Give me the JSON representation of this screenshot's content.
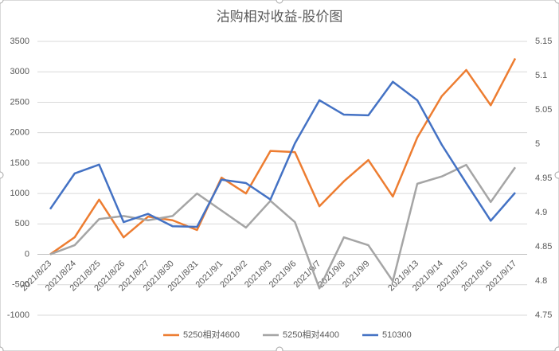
{
  "chart_data": {
    "type": "line",
    "title": "沽购相对收益-股价图",
    "categories": [
      "2021/8/23",
      "2021/8/24",
      "2021/8/25",
      "2021/8/26",
      "2021/8/27",
      "2021/8/30",
      "2021/8/31",
      "2021/9/1",
      "2021/9/2",
      "2021/9/3",
      "2021/9/6",
      "2021/9/7",
      "2021/9/8",
      "2021/9/9",
      null,
      "2021/9/13",
      "2021/9/14",
      "2021/9/15",
      "2021/9/16",
      "2021/9/17"
    ],
    "series": [
      {
        "name": "5250相对4600",
        "color": "#ed7d31",
        "values": [
          0,
          280,
          900,
          280,
          620,
          560,
          400,
          1260,
          1000,
          1700,
          1680,
          790,
          1200,
          1550,
          950,
          1920,
          2600,
          3030,
          2450,
          3220
        ]
      },
      {
        "name": "5250相对4400",
        "color": "#a5a5a5",
        "values": [
          0,
          150,
          580,
          630,
          560,
          630,
          1000,
          720,
          440,
          880,
          530,
          -560,
          280,
          150,
          -440,
          1160,
          1280,
          1470,
          860,
          1430
        ]
      },
      {
        "name": "510300",
        "color": "#4472c4",
        "axis": "y2",
        "values": [
          4.905,
          4.957,
          4.97,
          4.886,
          4.898,
          4.88,
          4.879,
          4.948,
          4.943,
          4.919,
          5.001,
          5.064,
          5.043,
          5.042,
          5.091,
          5.064,
          4.999,
          4.943,
          4.888,
          4.929
        ]
      }
    ],
    "ylim": [
      -1000,
      3500
    ],
    "yticks": [
      -1000,
      -500,
      0,
      500,
      1000,
      1500,
      2000,
      2500,
      3000,
      3500
    ],
    "y2lim": [
      4.75,
      5.15
    ],
    "y2ticks": [
      4.75,
      4.8,
      4.85,
      4.9,
      4.95,
      5,
      5.05,
      5.1,
      5.15
    ],
    "grid": true,
    "legend": "bottom"
  }
}
